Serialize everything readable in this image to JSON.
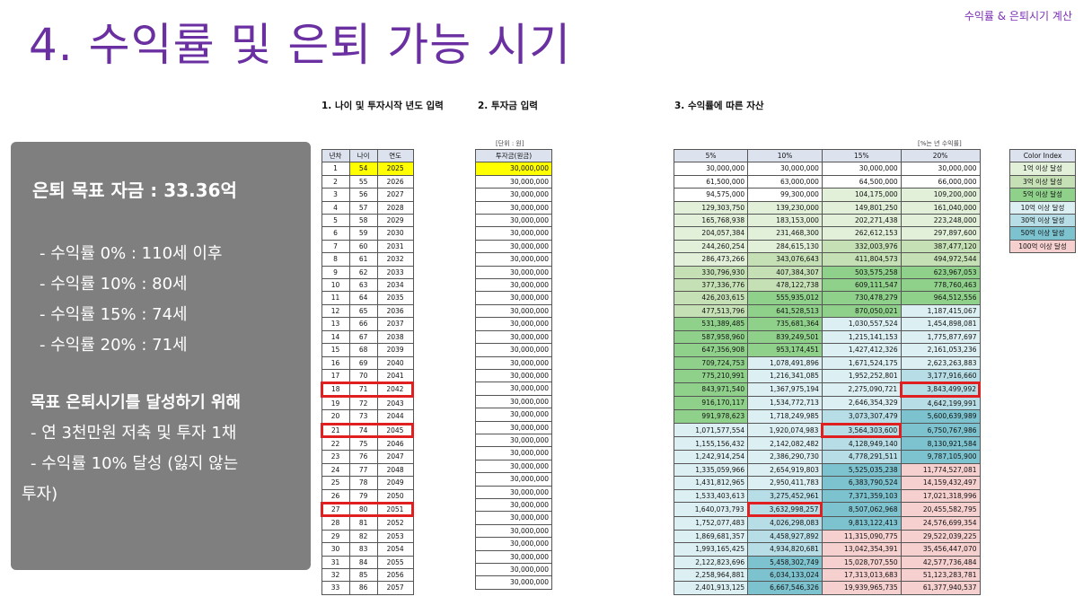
{
  "header": {
    "corner": "수익률 & 은퇴시기 계산",
    "title": "4. 수익률 및 은퇴 가능 시기"
  },
  "sections": {
    "s1": "1. 나이 및 투자시작 년도 입력",
    "s2": "2. 투자금 입력",
    "s3": "3. 수익률에 따른 자산"
  },
  "panel": {
    "goal": "은퇴 목표 자금 : 33.36억",
    "lines": [
      "- 수익률    0% : 110세 이후",
      "- 수익률 10% : 80세",
      "- 수익률 15% : 74세",
      "- 수익률 20% : 71세"
    ],
    "heading": "목표 은퇴시기를 달성하기 위해",
    "tips": [
      "- 연 3천만원 저축 및 투자 1채",
      "- 수익률 10% 달성 (잃지 않는",
      "투자)"
    ]
  },
  "table1": {
    "headers": [
      "년차",
      "나이",
      "연도"
    ]
  },
  "table2": {
    "unit": "[단위 : 원]",
    "header": "투자금(원금)",
    "value": "30,000,000"
  },
  "table3": {
    "unit": "[%는 년 수익률]",
    "headers": [
      "5%",
      "10%",
      "15%",
      "20%"
    ],
    "rows": [
      [
        "30,000,000",
        "30,000,000",
        "30,000,000",
        "30,000,000"
      ],
      [
        "61,500,000",
        "63,000,000",
        "64,500,000",
        "66,000,000"
      ],
      [
        "94,575,000",
        "99,300,000",
        "104,175,000",
        "109,200,000"
      ],
      [
        "129,303,750",
        "139,230,000",
        "149,801,250",
        "161,040,000"
      ],
      [
        "165,768,938",
        "183,153,000",
        "202,271,438",
        "223,248,000"
      ],
      [
        "204,057,384",
        "231,468,300",
        "262,612,153",
        "297,897,600"
      ],
      [
        "244,260,254",
        "284,615,130",
        "332,003,976",
        "387,477,120"
      ],
      [
        "286,473,266",
        "343,076,643",
        "411,804,573",
        "494,972,544"
      ],
      [
        "330,796,930",
        "407,384,307",
        "503,575,258",
        "623,967,053"
      ],
      [
        "377,336,776",
        "478,122,738",
        "609,111,547",
        "778,760,463"
      ],
      [
        "426,203,615",
        "555,935,012",
        "730,478,279",
        "964,512,556"
      ],
      [
        "477,513,796",
        "641,528,513",
        "870,050,021",
        "1,187,415,067"
      ],
      [
        "531,389,485",
        "735,681,364",
        "1,030,557,524",
        "1,454,898,081"
      ],
      [
        "587,958,960",
        "839,249,501",
        "1,215,141,153",
        "1,775,877,697"
      ],
      [
        "647,356,908",
        "953,174,451",
        "1,427,412,326",
        "2,161,053,236"
      ],
      [
        "709,724,753",
        "1,078,491,896",
        "1,671,524,175",
        "2,623,263,883"
      ],
      [
        "775,210,991",
        "1,216,341,085",
        "1,952,252,801",
        "3,177,916,660"
      ],
      [
        "843,971,540",
        "1,367,975,194",
        "2,275,090,721",
        "3,843,499,992"
      ],
      [
        "916,170,117",
        "1,534,772,713",
        "2,646,354,329",
        "4,642,199,991"
      ],
      [
        "991,978,623",
        "1,718,249,985",
        "3,073,307,479",
        "5,600,639,989"
      ],
      [
        "1,071,577,554",
        "1,920,074,983",
        "3,564,303,600",
        "6,750,767,986"
      ],
      [
        "1,155,156,432",
        "2,142,082,482",
        "4,128,949,140",
        "8,130,921,584"
      ],
      [
        "1,242,914,254",
        "2,386,290,730",
        "4,778,291,511",
        "9,787,105,900"
      ],
      [
        "1,335,059,966",
        "2,654,919,803",
        "5,525,035,238",
        "11,774,527,081"
      ],
      [
        "1,431,812,965",
        "2,950,411,783",
        "6,383,790,524",
        "14,159,432,497"
      ],
      [
        "1,533,403,613",
        "3,275,452,961",
        "7,371,359,103",
        "17,021,318,996"
      ],
      [
        "1,640,073,793",
        "3,632,998,257",
        "8,507,062,968",
        "20,455,582,795"
      ],
      [
        "1,752,077,483",
        "4,026,298,083",
        "9,813,122,413",
        "24,576,699,354"
      ],
      [
        "1,869,681,357",
        "4,458,927,892",
        "11,315,090,775",
        "29,522,039,225"
      ],
      [
        "1,993,165,425",
        "4,934,820,681",
        "13,042,354,391",
        "35,456,447,070"
      ],
      [
        "2,122,823,696",
        "5,458,302,749",
        "15,028,707,550",
        "42,577,736,484"
      ],
      [
        "2,258,964,881",
        "6,034,133,024",
        "17,313,013,683",
        "51,123,283,781"
      ],
      [
        "2,401,913,125",
        "6,667,546,326",
        "19,939,965,735",
        "61,377,940,537"
      ]
    ]
  },
  "color_index": {
    "title": "Color Index",
    "items": [
      {
        "label": "1억 이상 달성",
        "color": "#e2f0d9"
      },
      {
        "label": "3억 이상 달성",
        "color": "#c5e0b4"
      },
      {
        "label": "5억 이상 달성",
        "color": "#8fd18a"
      },
      {
        "label": "10억 이상 달성",
        "color": "#dcf0f3"
      },
      {
        "label": "30억 이상 달성",
        "color": "#b7dee6"
      },
      {
        "label": "50억 이상 달성",
        "color": "#7dc3cf"
      },
      {
        "label": "100억 이상 달성",
        "color": "#f6cfcf"
      }
    ]
  },
  "start": {
    "age": 54,
    "year": 2025,
    "years": 33
  },
  "highlights": {
    "rows_t1": [
      17,
      20,
      26
    ],
    "cells_t3": [
      [
        17,
        3
      ],
      [
        20,
        2
      ],
      [
        26,
        1
      ]
    ]
  }
}
